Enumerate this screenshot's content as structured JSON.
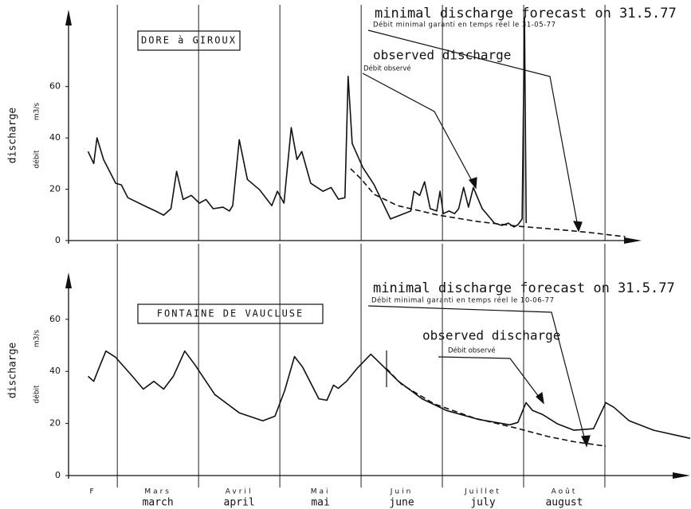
{
  "chart_data": [
    {
      "type": "line",
      "title": "DORE à GIROUX",
      "ylabel": "discharge",
      "ylabel_fr": "débit",
      "yunit": "m3/s",
      "annotations": [
        "minimal discharge forecast on 31.5.77",
        "Débit minimal garanti en temps réel le 31-05-77",
        "observed discharge",
        "Débit observé"
      ],
      "xlim": [
        0.4,
        7.45
      ],
      "xgrid": [
        1,
        2,
        3,
        4,
        5,
        6,
        7
      ],
      "ylim": [
        0,
        90
      ],
      "yticks": [
        0,
        20,
        40,
        60
      ],
      "series": [
        {
          "color": "#111111",
          "dashed": false,
          "x": [
            0.64,
            0.71,
            0.75,
            0.83,
            0.98,
            1.05,
            1.13,
            1.37,
            1.47,
            1.57,
            1.66,
            1.73,
            1.81,
            1.91,
            2.01,
            2.09,
            2.18,
            2.3,
            2.38,
            2.42,
            2.5,
            2.6,
            2.75,
            2.9,
            2.97,
            3.05,
            3.14,
            3.21,
            3.27,
            3.38,
            3.53,
            3.63,
            3.72,
            3.8,
            3.84,
            3.89,
            4.02,
            4.16,
            4.36,
            4.61,
            4.65,
            4.72,
            4.78,
            4.85,
            4.93,
            4.97,
            5.01,
            5.08,
            5.15,
            5.2,
            5.26,
            5.32,
            5.38,
            5.44,
            5.49,
            5.64,
            5.73,
            5.81,
            5.88,
            5.93,
            5.98,
            6.01,
            6.03
          ],
          "values": [
            34.7,
            30,
            40,
            31.6,
            22.3,
            21.7,
            16.7,
            13,
            11.5,
            9.9,
            12.4,
            27,
            16,
            17.6,
            14.6,
            16,
            12.4,
            13,
            11.5,
            13.6,
            39.3,
            23.8,
            19.8,
            13.6,
            19.2,
            14.6,
            44,
            31.6,
            34.7,
            22.3,
            19.2,
            20.7,
            16.1,
            16.7,
            64,
            37.8,
            28.5,
            21.7,
            8.4,
            11.5,
            19.2,
            17.6,
            22.9,
            12.4,
            11.5,
            19.2,
            10.5,
            11.5,
            10.5,
            12.4,
            20.7,
            13,
            20.7,
            16.1,
            12.4,
            6.8,
            5.9,
            6.8,
            5.3,
            6.2,
            8.4,
            87,
            6.8
          ]
        },
        {
          "color": "#111111",
          "dashed": true,
          "x": [
            3.87,
            4.0,
            4.16,
            4.45,
            4.95,
            5.44,
            5.93,
            6.42,
            6.82,
            7.25
          ],
          "values": [
            28,
            24,
            18,
            13.6,
            9.9,
            7.4,
            5.6,
            4.3,
            3.1,
            1.5
          ]
        }
      ]
    },
    {
      "type": "line",
      "title": "FONTAINE DE VAUCLUSE",
      "ylabel": "discharge",
      "ylabel_fr": "débit",
      "yunit": "m3/s",
      "annotations": [
        "minimal discharge forecast on 31.5.77",
        "Débit minimal garanti en temps réel le 10-06-77",
        "observed discharge",
        "Débit observé"
      ],
      "xlim": [
        0.4,
        8.05
      ],
      "xgrid": [
        1,
        2,
        3,
        4,
        5,
        6,
        7
      ],
      "categories": [
        "F",
        "Mars",
        "Avril",
        "Mai",
        "Juin",
        "Juillet",
        "Août"
      ],
      "categories_en": [
        null,
        "march",
        "april",
        "mai",
        "june",
        "july",
        "august"
      ],
      "ylim": [
        0,
        78
      ],
      "yticks": [
        0,
        20,
        40,
        60
      ],
      "series": [
        {
          "color": "#111111",
          "dashed": false,
          "x": [
            0.64,
            0.71,
            0.78,
            0.86,
            0.98,
            1.17,
            1.32,
            1.45,
            1.57,
            1.69,
            1.83,
            1.96,
            2.2,
            2.5,
            2.79,
            2.94,
            3.06,
            3.18,
            3.28,
            3.48,
            3.58,
            3.66,
            3.72,
            3.82,
            3.95,
            4.12,
            4.26,
            4.46,
            4.75,
            5.05,
            5.44,
            5.83,
            5.93,
            6.03,
            6.11,
            6.23,
            6.42,
            6.62,
            6.86,
            7.01,
            7.11,
            7.3,
            7.6,
            8.05
          ],
          "values": [
            38.1,
            36.2,
            41.7,
            47.8,
            45.4,
            38.7,
            33.2,
            36.2,
            33.2,
            38.1,
            47.8,
            42.3,
            31.1,
            24.1,
            21,
            22.8,
            32.6,
            45.7,
            41.7,
            29.5,
            28.9,
            34.7,
            33.5,
            36.2,
            41.1,
            46.6,
            42.3,
            36.2,
            29.5,
            25,
            21.6,
            19.5,
            20.4,
            28,
            25,
            23.5,
            19.8,
            17.4,
            18,
            28,
            26.2,
            21,
            17.4,
            14.3
          ]
        },
        {
          "color": "#111111",
          "dashed": true,
          "x": [
            4.31,
            4.5,
            4.9,
            5.4,
            5.9,
            6.3,
            6.62,
            7.01
          ],
          "values": [
            41.1,
            35,
            27.5,
            22,
            18.3,
            15,
            13,
            11.3
          ]
        }
      ]
    }
  ]
}
